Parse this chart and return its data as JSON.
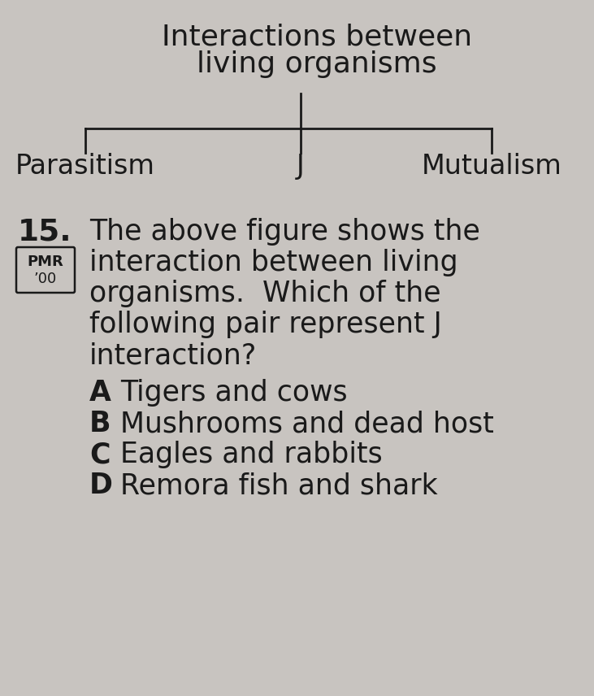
{
  "bg_color": "#c8c4c0",
  "title_line1": "Interactions between",
  "title_line2": "living organisms",
  "diagram_labels": [
    "Parasitism",
    "J",
    "Mutualism"
  ],
  "question_number": "15.",
  "question_text_lines": [
    "The above figure shows the",
    "interaction between living",
    "organisms.  Which of the",
    "following pair represent J",
    "interaction?"
  ],
  "pmr_label": "PMR",
  "pmr_year": "’00",
  "options": [
    {
      "letter": "A",
      "text": "Tigers and cows"
    },
    {
      "letter": "B",
      "text": "Mushrooms and dead host"
    },
    {
      "letter": "C",
      "text": "Eagles and rabbits"
    },
    {
      "letter": "D",
      "text": "Remora fish and shark"
    }
  ],
  "text_color": "#1a1a1a",
  "title_fontsize": 26,
  "label_fontsize": 24,
  "question_fontsize": 25,
  "option_fontsize": 25,
  "qnum_fontsize": 27
}
